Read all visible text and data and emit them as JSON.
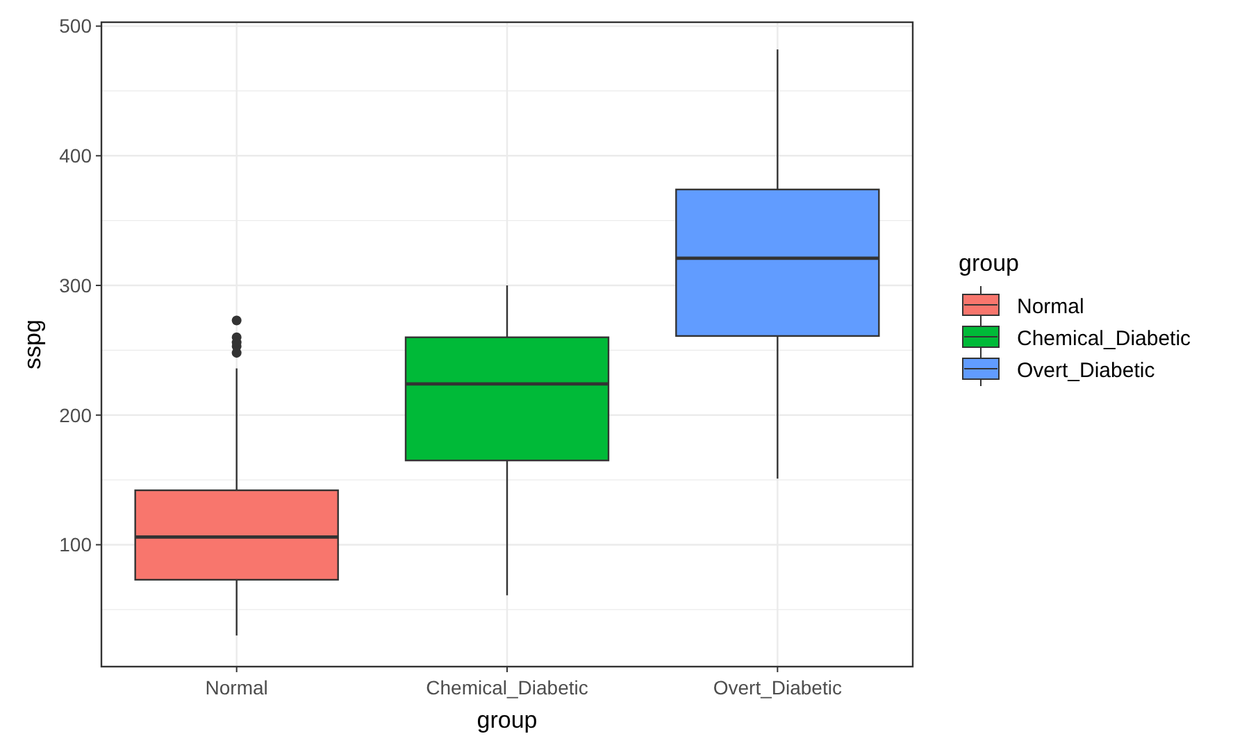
{
  "chart_data": {
    "type": "box",
    "xlabel": "group",
    "ylabel": "sspg",
    "legend_title": "group",
    "categories": [
      "Normal",
      "Chemical_Diabetic",
      "Overt_Diabetic"
    ],
    "series": [
      {
        "name": "Normal",
        "color": "#f8766d",
        "boxes": [
          {
            "low": 30,
            "q1": 73,
            "median": 106,
            "q3": 142,
            "high": 236,
            "outliers": [
              248,
              253,
              256,
              260,
              273
            ]
          },
          null,
          null
        ]
      },
      {
        "name": "Chemical_Diabetic",
        "color": "#00ba38",
        "boxes": [
          null,
          {
            "low": 61,
            "q1": 165,
            "median": 224,
            "q3": 260,
            "high": 300
          },
          null
        ]
      },
      {
        "name": "Overt_Diabetic",
        "color": "#619cff",
        "boxes": [
          null,
          null,
          {
            "low": 151,
            "q1": 261,
            "median": 321,
            "q3": 374,
            "high": 482
          }
        ]
      }
    ],
    "ylim": [
      6,
      503
    ],
    "yticks": [
      100,
      200,
      300,
      400,
      500
    ],
    "grid": true,
    "legend": "right"
  }
}
